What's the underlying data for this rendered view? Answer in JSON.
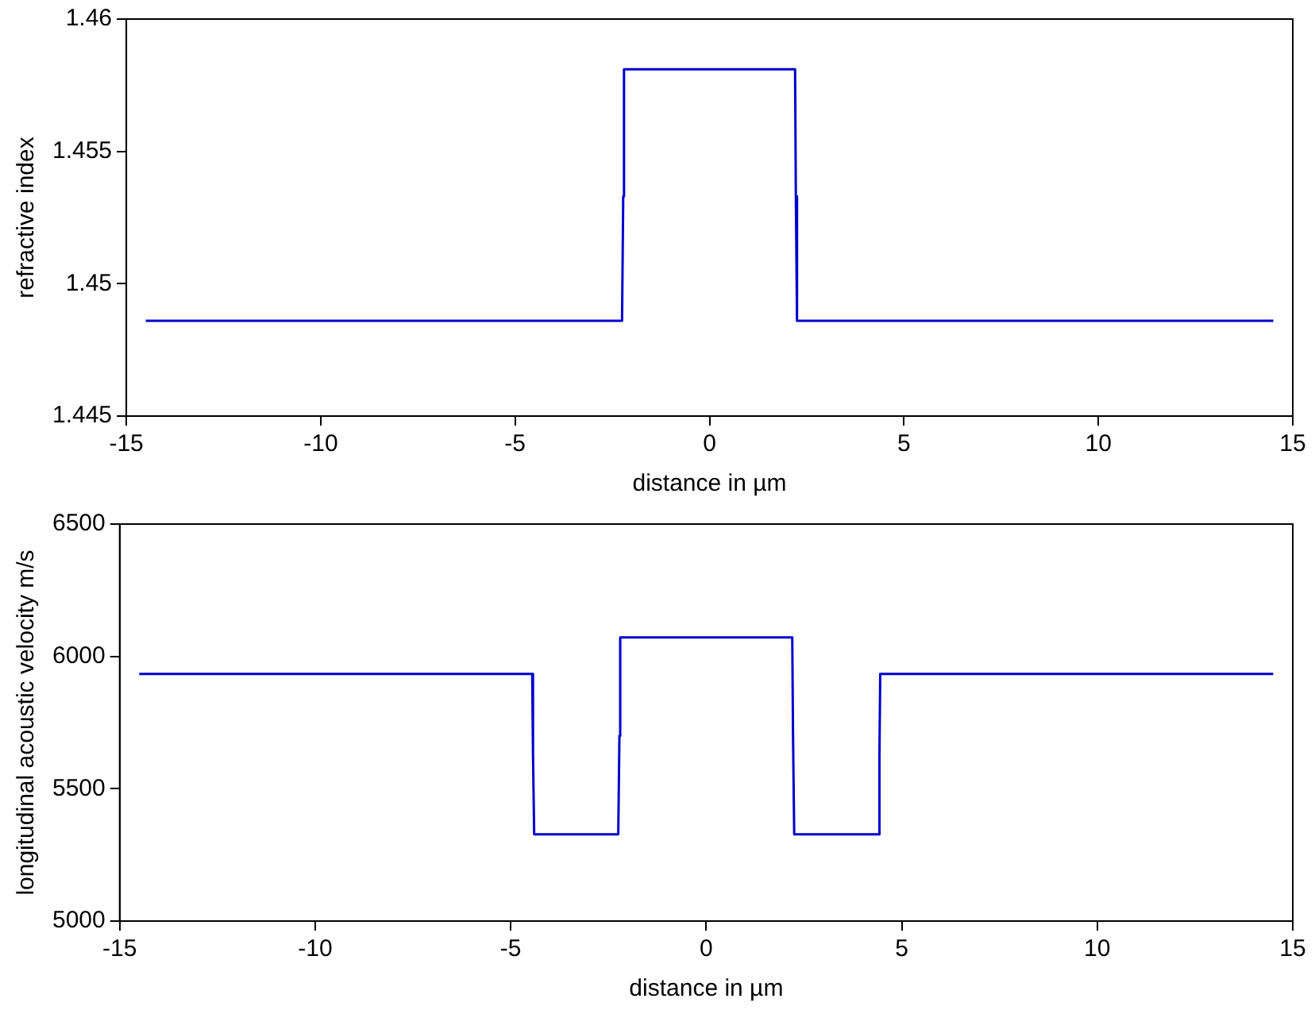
{
  "chart_data": [
    {
      "type": "line",
      "xlabel": "distance in µm",
      "ylabel": "refractive index",
      "x": [
        -14.5,
        -2.25,
        -2.22,
        -2.2,
        2.2,
        2.22,
        2.25,
        14.5
      ],
      "series": [
        {
          "color": "#0000cc",
          "values": [
            1.4486,
            1.4486,
            1.4533,
            1.4581,
            1.4581,
            1.4533,
            1.4486,
            1.4486
          ]
        }
      ],
      "xlim": [
        -15,
        15
      ],
      "xticks": [
        -15,
        -10,
        -5,
        0,
        5,
        10,
        15
      ],
      "ylim": [
        1.445,
        1.46
      ],
      "yticks": [
        1.445,
        1.45,
        1.455,
        1.46
      ],
      "grid": false,
      "legend": false,
      "marker": "none",
      "line_style": "solid"
    },
    {
      "type": "line",
      "xlabel": "distance in µm",
      "ylabel": "longitudinal acoustic velocity m/s",
      "x": [
        -14.5,
        -4.45,
        -4.43,
        -4.4,
        -2.25,
        -2.22,
        -2.2,
        2.2,
        2.22,
        2.25,
        4.4,
        4.43,
        4.45,
        14.5
      ],
      "series": [
        {
          "color": "#0000cc",
          "values": [
            5934,
            5934,
            5631,
            5328,
            5328,
            5700,
            6072,
            6072,
            5700,
            5328,
            5328,
            5631,
            5934,
            5934
          ]
        }
      ],
      "xlim": [
        -15,
        15
      ],
      "xticks": [
        -15,
        -10,
        -5,
        0,
        5,
        10,
        15
      ],
      "ylim": [
        5000,
        6500
      ],
      "yticks": [
        5000,
        5500,
        6000,
        6500
      ],
      "grid": false,
      "legend": false,
      "marker": "none",
      "line_style": "solid"
    }
  ]
}
